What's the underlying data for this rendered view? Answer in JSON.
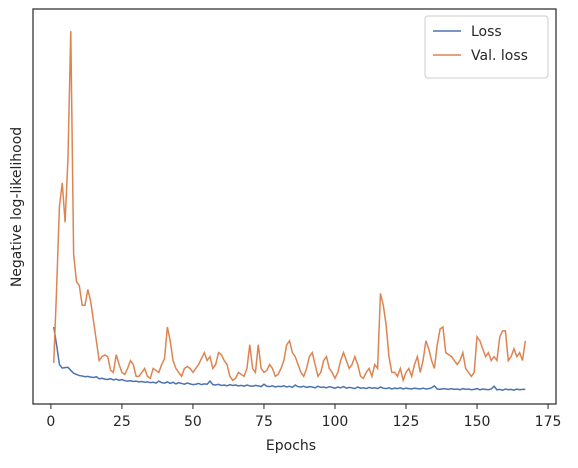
{
  "chart_data": {
    "type": "line",
    "xlabel": "Epochs",
    "ylabel": "Negative log-likelihood",
    "xlim": [
      -6.3,
      177.8
    ],
    "xticks": [
      0,
      25,
      50,
      75,
      100,
      125,
      150,
      175
    ],
    "ylim": [
      0,
      100
    ],
    "legend": "upper right",
    "x": [
      1,
      2,
      3,
      4,
      5,
      6,
      7,
      8,
      9,
      10,
      11,
      12,
      13,
      14,
      15,
      16,
      17,
      18,
      19,
      20,
      21,
      22,
      23,
      24,
      25,
      26,
      27,
      28,
      29,
      30,
      31,
      32,
      33,
      34,
      35,
      36,
      37,
      38,
      39,
      40,
      41,
      42,
      43,
      44,
      45,
      46,
      47,
      48,
      49,
      50,
      51,
      52,
      53,
      54,
      55,
      56,
      57,
      58,
      59,
      60,
      61,
      62,
      63,
      64,
      65,
      66,
      67,
      68,
      69,
      70,
      71,
      72,
      73,
      74,
      75,
      76,
      77,
      78,
      79,
      80,
      81,
      82,
      83,
      84,
      85,
      86,
      87,
      88,
      89,
      90,
      91,
      92,
      93,
      94,
      95,
      96,
      97,
      98,
      99,
      100,
      101,
      102,
      103,
      104,
      105,
      106,
      107,
      108,
      109,
      110,
      111,
      112,
      113,
      114,
      115,
      116,
      117,
      118,
      119,
      120,
      121,
      122,
      123,
      124,
      125,
      126,
      127,
      128,
      129,
      130,
      131,
      132,
      133,
      134,
      135,
      136,
      137,
      138,
      139,
      140,
      141,
      142,
      143,
      144,
      145,
      146,
      147,
      148,
      149,
      150,
      151,
      152,
      153,
      154,
      155,
      156,
      157,
      158,
      159,
      160,
      161,
      162,
      163,
      164,
      165,
      166,
      167
    ],
    "series": [
      {
        "name": "Loss",
        "color": "#4c72b0",
        "values": [
          19.5,
          15,
          10,
          9.1,
          9.2,
          9.3,
          8.5,
          7.8,
          7.5,
          7.2,
          7.1,
          6.9,
          7.0,
          6.8,
          6.7,
          6.9,
          6.4,
          6.5,
          6.3,
          6.2,
          6.4,
          6.1,
          6.3,
          6.0,
          6.2,
          5.9,
          5.8,
          5.9,
          5.7,
          5.8,
          5.6,
          5.7,
          5.5,
          5.6,
          5.4,
          5.5,
          5.3,
          5.8,
          5.4,
          5.3,
          5.6,
          5.2,
          5.5,
          5.1,
          5.4,
          5.2,
          5.0,
          5.3,
          5.1,
          4.9,
          5.0,
          5.2,
          4.9,
          5.1,
          5.0,
          5.8,
          4.9,
          4.8,
          5.0,
          4.7,
          4.8,
          4.6,
          4.9,
          4.7,
          4.8,
          4.6,
          4.7,
          4.5,
          4.8,
          4.6,
          4.5,
          4.7,
          4.6,
          4.4,
          5.0,
          4.5,
          4.4,
          4.6,
          4.3,
          4.5,
          4.4,
          4.6,
          4.3,
          4.5,
          4.2,
          4.8,
          4.4,
          4.3,
          4.5,
          4.2,
          4.4,
          4.3,
          4.1,
          4.5,
          4.2,
          4.3,
          4.1,
          4.4,
          4.2,
          4.0,
          4.3,
          4.1,
          4.4,
          4.0,
          4.2,
          4.1,
          3.9,
          4.3,
          4.0,
          4.1,
          3.9,
          4.2,
          4.0,
          4.1,
          3.9,
          4.3,
          4.0,
          3.9,
          4.1,
          3.8,
          4.0,
          3.9,
          4.1,
          3.8,
          4.0,
          3.9,
          3.8,
          4.0,
          3.9,
          3.8,
          4.0,
          3.8,
          3.9,
          4.1,
          4.6,
          3.8,
          3.7,
          3.9,
          3.8,
          3.7,
          3.9,
          3.7,
          3.8,
          3.6,
          3.9,
          3.7,
          3.8,
          3.6,
          3.7,
          3.9,
          3.6,
          3.8,
          3.7,
          3.6,
          3.8,
          4.5,
          3.6,
          3.7,
          3.5,
          3.8,
          3.6,
          3.7,
          3.5,
          3.8,
          3.6,
          3.7,
          3.7
        ]
      },
      {
        "name": "Val. loss",
        "color": "#dd8452",
        "values": [
          10.4,
          29,
          50,
          56,
          46,
          62,
          94.4,
          38,
          31,
          30,
          25,
          25,
          29,
          26,
          21,
          16,
          11,
          12,
          12.4,
          12,
          8.6,
          8,
          12.5,
          10,
          8,
          7.5,
          9,
          11,
          10,
          7,
          7,
          8,
          9,
          7,
          6.5,
          9,
          8.5,
          8,
          10,
          11.5,
          19.5,
          16,
          11,
          9,
          8,
          7,
          9,
          9.5,
          9,
          8,
          9,
          10,
          11.5,
          13,
          11,
          12,
          9,
          10,
          13,
          12.5,
          11,
          10,
          7,
          6,
          6.5,
          8,
          7.5,
          7,
          9,
          15,
          9,
          8,
          15,
          9,
          8,
          8.5,
          10,
          9,
          7,
          7.5,
          9,
          11,
          15,
          16,
          13,
          12,
          10,
          8,
          7,
          9,
          12,
          13,
          10,
          7,
          8,
          11,
          12,
          9,
          8,
          6.5,
          8,
          11,
          13,
          11,
          9,
          10,
          12,
          10,
          7,
          6.5,
          8,
          9,
          7,
          10,
          9,
          28,
          25,
          20,
          12,
          8,
          8,
          7,
          9,
          6,
          8,
          9,
          7,
          10,
          12,
          8,
          11,
          16,
          14,
          11,
          9,
          15,
          19,
          19.5,
          13,
          12.5,
          12,
          11,
          10,
          11,
          13,
          9,
          8,
          7,
          8,
          17,
          16,
          14,
          12,
          13,
          11,
          12,
          11,
          17,
          18.5,
          18.5,
          11,
          12,
          14,
          12,
          13,
          11,
          16
        ]
      }
    ]
  }
}
